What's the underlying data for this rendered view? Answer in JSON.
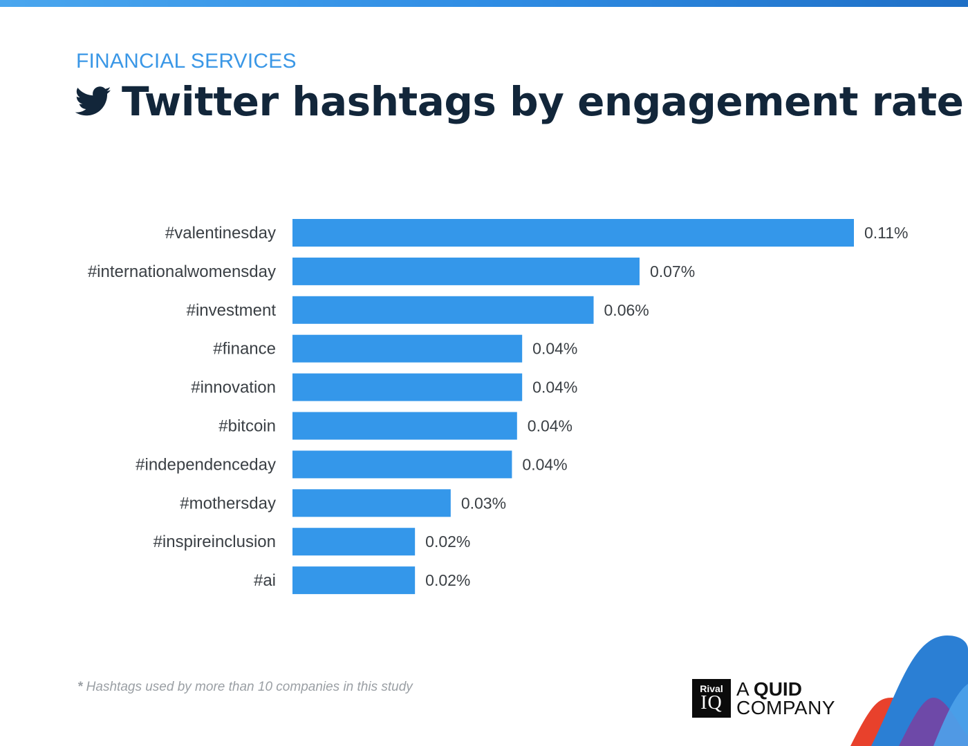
{
  "header": {
    "category": "FINANCIAL SERVICES",
    "title": "Twitter hashtags by engagement rate",
    "icon": "twitter-bird-icon"
  },
  "chart_data": {
    "type": "bar",
    "orientation": "horizontal",
    "categories": [
      "#valentinesday",
      "#internationalwomensday",
      "#investment",
      "#finance",
      "#innovation",
      "#bitcoin",
      "#independenceday",
      "#mothersday",
      "#inspireinclusion",
      "#ai"
    ],
    "values": [
      0.11,
      0.068,
      0.059,
      0.045,
      0.045,
      0.044,
      0.043,
      0.031,
      0.024,
      0.024
    ],
    "value_labels": [
      "0.11%",
      "0.07%",
      "0.06%",
      "0.04%",
      "0.04%",
      "0.04%",
      "0.04%",
      "0.03%",
      "0.02%",
      "0.02%"
    ],
    "unit": "%",
    "xlim": [
      0,
      0.11
    ],
    "grid": false,
    "bar_color": "#3497ea"
  },
  "footnote": {
    "star": "*",
    "text": " Hashtags used by more than 10 companies in this study"
  },
  "logo": {
    "box_top": "Rival",
    "box_bottom": "IQ",
    "line1_prefix": "A ",
    "line1_bold": "QUID",
    "line2": "COMPANY"
  },
  "colors": {
    "accent": "#3a97e6",
    "title": "#12263a",
    "bar": "#3497ea"
  }
}
